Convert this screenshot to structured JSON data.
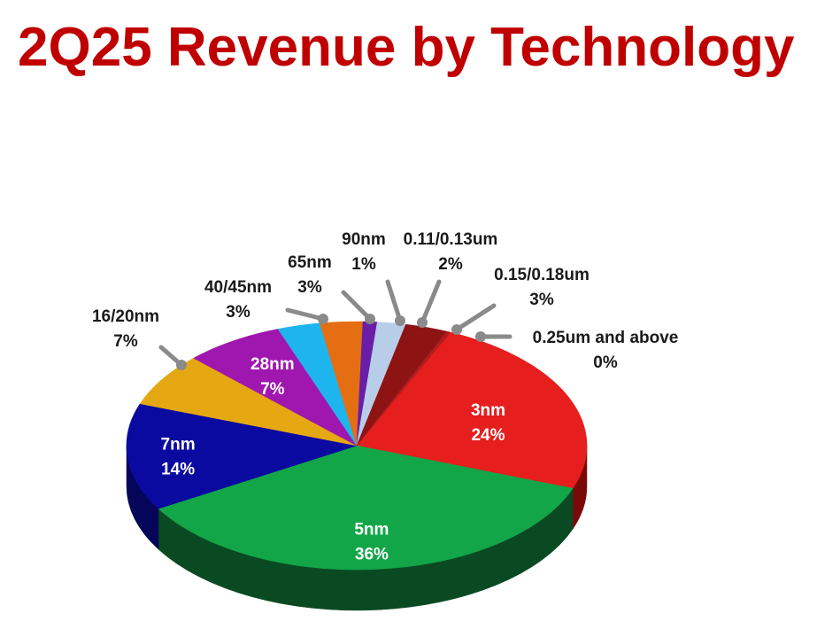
{
  "chart_data": {
    "type": "pie",
    "title": "2Q25 Revenue by Technology",
    "slices": [
      {
        "label": "3nm",
        "value": 24,
        "value_label": "24%",
        "color": "#e61e1e",
        "dark": "#7a0a0a"
      },
      {
        "label": "5nm",
        "value": 36,
        "value_label": "36%",
        "color": "#12a648",
        "dark": "#0a4a22"
      },
      {
        "label": "7nm",
        "value": 14,
        "value_label": "14%",
        "color": "#0a0aa0",
        "dark": "#05055a"
      },
      {
        "label": "16/20nm",
        "value": 7,
        "value_label": "7%",
        "color": "#e6a812",
        "dark": "#7a5a08"
      },
      {
        "label": "28nm",
        "value": 7,
        "value_label": "7%",
        "color": "#a017b0",
        "dark": "#500a58"
      },
      {
        "label": "40/45nm",
        "value": 3,
        "value_label": "3%",
        "color": "#1eb4ee",
        "dark": "#0a5a78"
      },
      {
        "label": "65nm",
        "value": 3,
        "value_label": "3%",
        "color": "#e66e12",
        "dark": "#7a3608"
      },
      {
        "label": "90nm",
        "value": 1,
        "value_label": "1%",
        "color": "#6a1ea8",
        "dark": "#350e55"
      },
      {
        "label": "0.11/0.13um",
        "value": 2,
        "value_label": "2%",
        "color": "#b8cde8",
        "dark": "#5a6a80"
      },
      {
        "label": "0.15/0.18um",
        "value": 3,
        "value_label": "3%",
        "color": "#8e1414",
        "dark": "#4a0808"
      },
      {
        "label": "0.25um and above",
        "value": 0,
        "value_label": "0%",
        "color": "#b01e1e",
        "dark": "#580e0e"
      }
    ]
  }
}
